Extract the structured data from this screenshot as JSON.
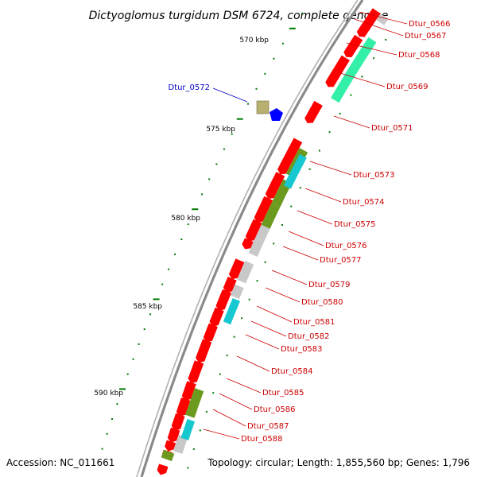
{
  "title": "Dictyoglomus turgidum DSM 6724, complete genome",
  "accession": "Accession: NC_011661",
  "summary": "Topology: circular; Length: 1,855,560 bp; Genes: 1,796",
  "colors": {
    "cds": "#ff0000",
    "grey": "#c8c8c8",
    "mint": "#33f0a8",
    "olive": "#6b9a1e",
    "olive_light": "#b8b070",
    "cyan": "#18c8d0",
    "blue": "#0000ff",
    "tick": "#007a00",
    "backbone": "#9a9a9a",
    "label_red": "#cc0000",
    "label_blue": "#0000cc"
  },
  "kbp_ticks": [
    "570 kbp",
    "575 kbp",
    "580 kbp",
    "585 kbp",
    "590 kbp"
  ],
  "gene_labels": [
    "Dtur_0566",
    "Dtur_0567",
    "Dtur_0568",
    "Dtur_0569",
    "Dtur_0571",
    "Dtur_0572",
    "Dtur_0573",
    "Dtur_0574",
    "Dtur_0575",
    "Dtur_0576",
    "Dtur_0577",
    "Dtur_0579",
    "Dtur_0580",
    "Dtur_0581",
    "Dtur_0582",
    "Dtur_0583",
    "Dtur_0584",
    "Dtur_0585",
    "Dtur_0586",
    "Dtur_0587",
    "Dtur_0588"
  ]
}
